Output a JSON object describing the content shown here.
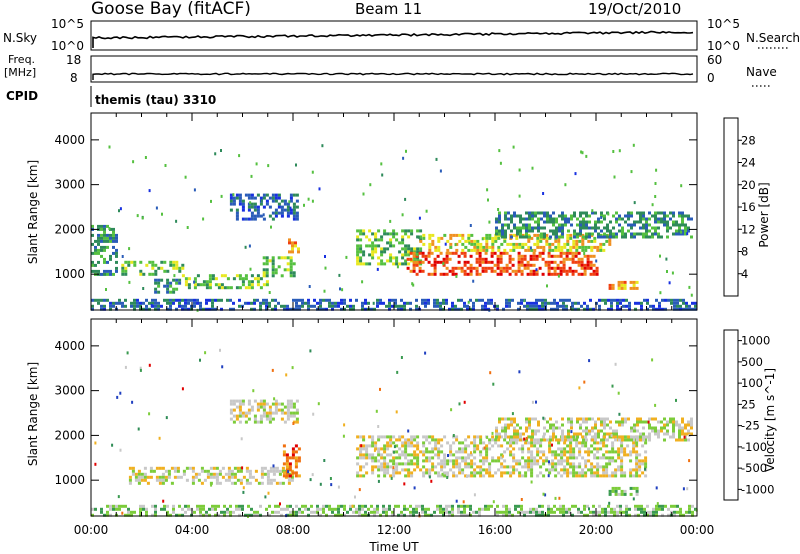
{
  "header": {
    "station": "Goose Bay (fitACF)",
    "beam": "Beam 11",
    "date": "19/Oct/2010"
  },
  "top_panels": {
    "nsky_label": "N.Sky",
    "nsearch_label": "N.Search",
    "nsky_ticks": [
      "10^5",
      "10^0"
    ],
    "nsky_right_ticks": [
      "10^5",
      "10^0"
    ],
    "freq_label": "Freq.",
    "freq_unit": "[MHz]",
    "freq_ticks": [
      "18",
      "8"
    ],
    "nave_label": "Nave",
    "nave_ticks": [
      "60",
      "0"
    ],
    "cpid_label": "CPID",
    "cpid_value": "themis (tau) 3310"
  },
  "chart_data": [
    {
      "type": "heatmap",
      "name": "power",
      "ylabel": "Slant Range [km]",
      "yticks": [
        1000,
        2000,
        3000,
        4000
      ],
      "ylim": [
        200,
        4600
      ],
      "xlim": [
        0,
        24
      ],
      "colorbar_label": "Power [dB]",
      "colorbar_ticks": [
        "4",
        "8",
        "12",
        "16",
        "20",
        "24",
        "28"
      ],
      "colors": [
        "#1830e0",
        "#2a5cb8",
        "#2e8a5a",
        "#55c040",
        "#e8e820",
        "#f09020",
        "#f04010",
        "#e00000"
      ],
      "regions": [
        {
          "t0": 0.0,
          "t1": 1.0,
          "r0": 1000,
          "r1": 2100,
          "level": 2
        },
        {
          "t0": 1.2,
          "t1": 3.6,
          "r0": 1000,
          "r1": 1300,
          "level": 3
        },
        {
          "t0": 2.5,
          "t1": 3.5,
          "r0": 600,
          "r1": 900,
          "level": 2
        },
        {
          "t0": 3.6,
          "t1": 7.0,
          "r0": 700,
          "r1": 1000,
          "level": 3
        },
        {
          "t0": 6.8,
          "t1": 8.0,
          "r0": 950,
          "r1": 1400,
          "level": 3
        },
        {
          "t0": 7.8,
          "t1": 8.2,
          "r0": 1500,
          "r1": 1800,
          "level": 5
        },
        {
          "t0": 5.5,
          "t1": 8.2,
          "r0": 2200,
          "r1": 2800,
          "level": 1
        },
        {
          "t0": 10.5,
          "t1": 13.0,
          "r0": 1200,
          "r1": 2000,
          "level": 3
        },
        {
          "t0": 12.5,
          "t1": 20.0,
          "r0": 1000,
          "r1": 1500,
          "level": 6
        },
        {
          "t0": 13.0,
          "t1": 20.5,
          "r0": 1500,
          "r1": 1900,
          "level": 4
        },
        {
          "t0": 16.0,
          "t1": 23.8,
          "r0": 1800,
          "r1": 2400,
          "level": 2
        },
        {
          "t0": 20.5,
          "t1": 21.6,
          "r0": 650,
          "r1": 850,
          "level": 5
        },
        {
          "t0": 0.0,
          "t1": 24.0,
          "r0": 200,
          "r1": 450,
          "level": 1
        }
      ]
    },
    {
      "type": "heatmap",
      "name": "velocity",
      "ylabel": "Slant Range [km]",
      "yticks": [
        1000,
        2000,
        3000,
        4000
      ],
      "ylim": [
        200,
        4600
      ],
      "xlim": [
        0,
        24
      ],
      "colorbar_label": "Velocity [m s^-1]",
      "colorbar_ticks": [
        "1000",
        "500",
        "100",
        "25",
        "-25",
        "-100",
        "-500",
        "-1000"
      ],
      "colors": [
        "#2040c0",
        "#2f8c56",
        "#3a9a50",
        "#7ccc3a",
        "#c8c8c8",
        "#f0b020",
        "#f07010",
        "#e00000"
      ],
      "regions": [
        {
          "t0": 1.5,
          "t1": 8.0,
          "r0": 900,
          "r1": 1300,
          "level": 4
        },
        {
          "t0": 5.5,
          "t1": 8.2,
          "r0": 2300,
          "r1": 2800,
          "level": 4
        },
        {
          "t0": 7.6,
          "t1": 8.3,
          "r0": 1100,
          "r1": 1800,
          "level": 6
        },
        {
          "t0": 10.5,
          "t1": 22.0,
          "r0": 1100,
          "r1": 2000,
          "level": 4
        },
        {
          "t0": 16.0,
          "t1": 23.8,
          "r0": 1900,
          "r1": 2400,
          "level": 4
        },
        {
          "t0": 20.5,
          "t1": 21.6,
          "r0": 650,
          "r1": 850,
          "level": 3
        },
        {
          "t0": 0.0,
          "t1": 24.0,
          "r0": 200,
          "r1": 450,
          "level": 3
        }
      ]
    }
  ],
  "x_axis": {
    "label": "Time UT",
    "ticks": [
      "00:00",
      "04:00",
      "08:00",
      "12:00",
      "16:00",
      "20:00",
      "00:00"
    ]
  }
}
